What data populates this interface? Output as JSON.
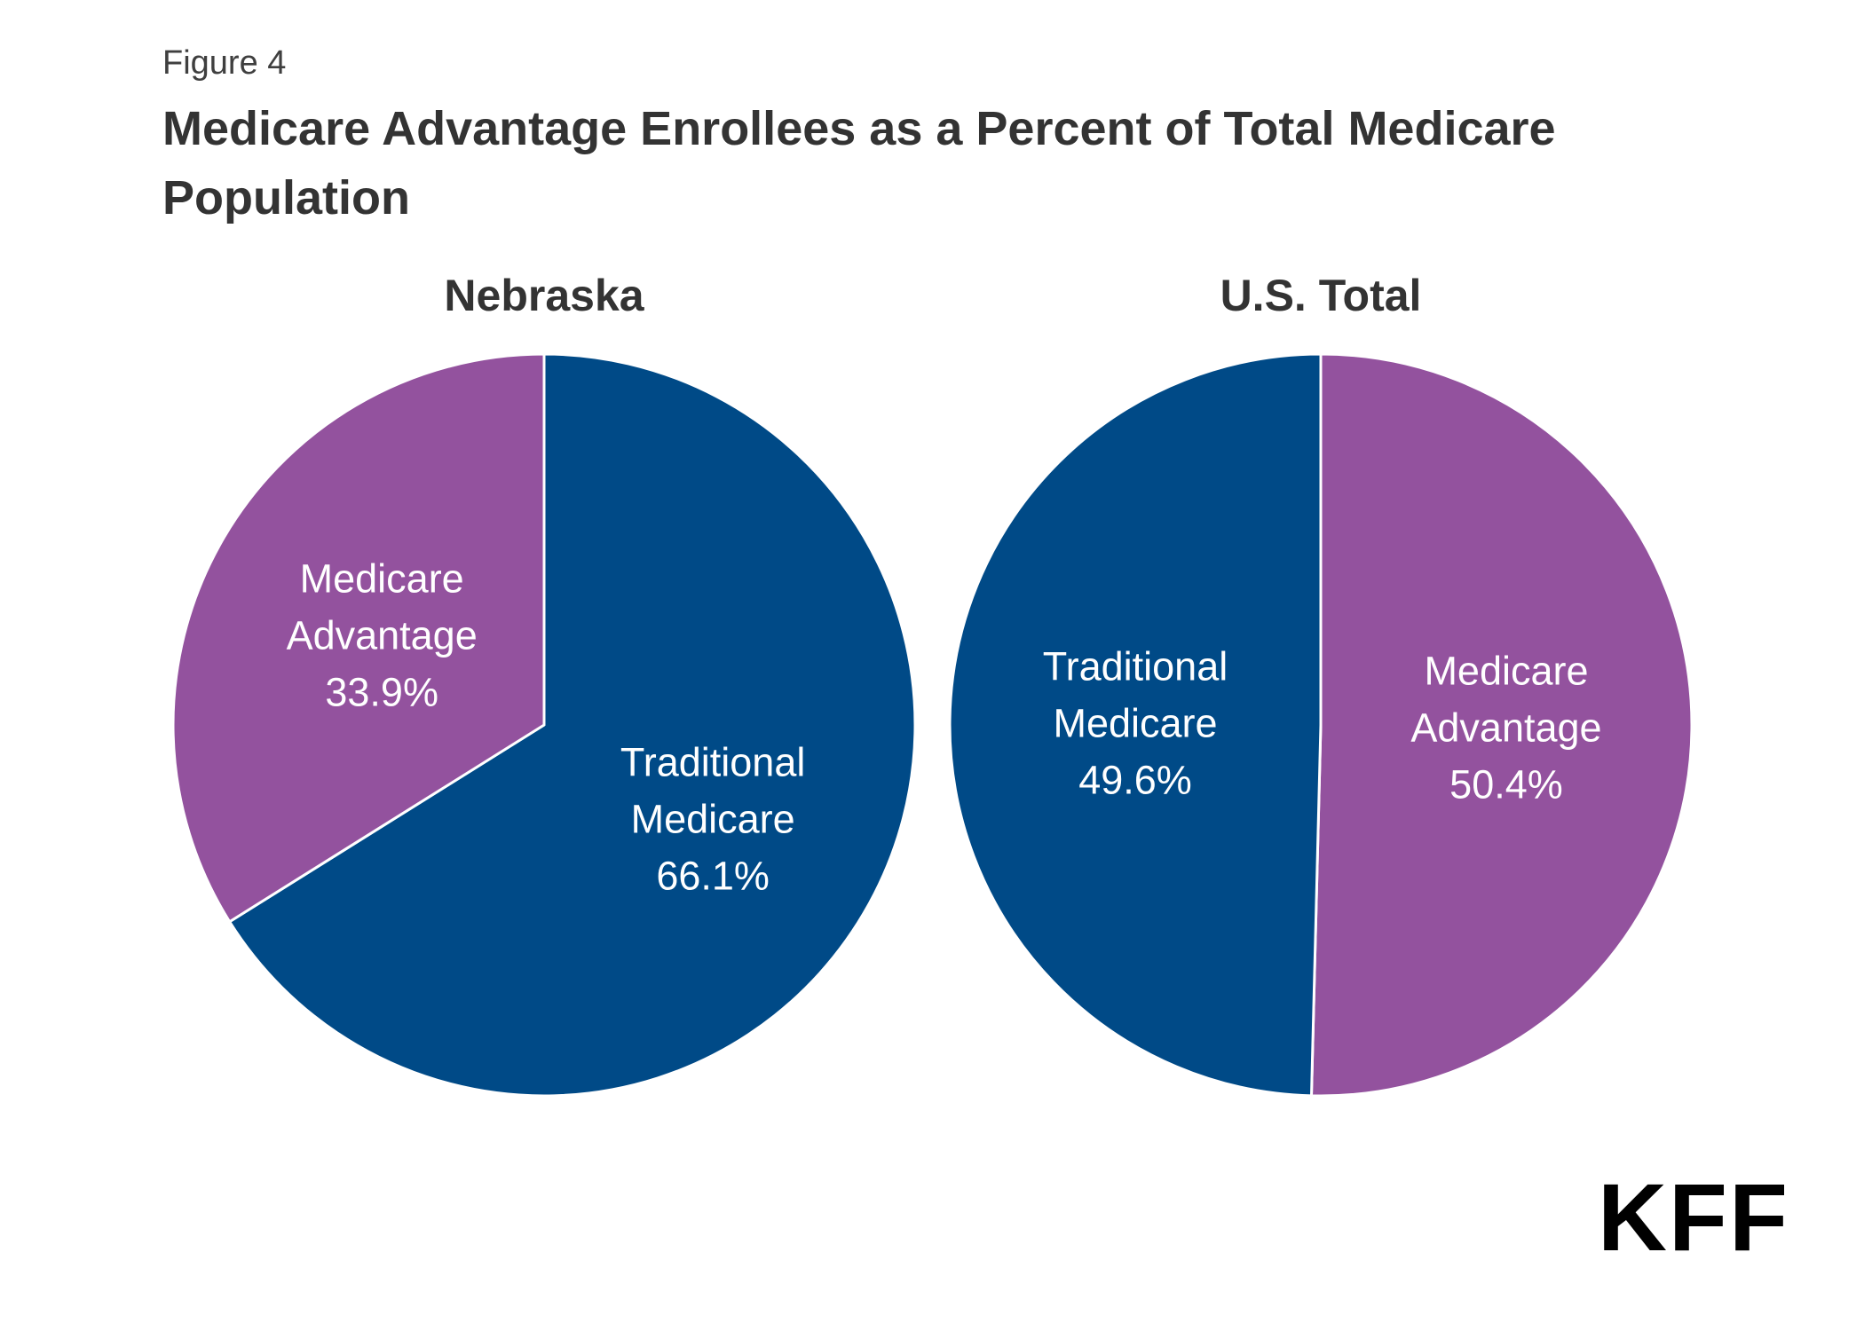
{
  "figure": {
    "label": "Figure 4",
    "title": "Medicare Advantage Enrollees as a Percent of Total Medicare Population"
  },
  "colors": {
    "traditional": "#004a87",
    "advantage": "#93529e"
  },
  "logo": "KFF",
  "chart_data": [
    {
      "type": "pie",
      "title": "Nebraska",
      "slices": [
        {
          "label": "Traditional Medicare",
          "label_lines": [
            "Traditional",
            "Medicare"
          ],
          "value": 66.1,
          "value_label": "66.1%",
          "color": "#004a87"
        },
        {
          "label": "Medicare Advantage",
          "label_lines": [
            "Medicare",
            "Advantage"
          ],
          "value": 33.9,
          "value_label": "33.9%",
          "color": "#93529e"
        }
      ]
    },
    {
      "type": "pie",
      "title": "U.S. Total",
      "slices": [
        {
          "label": "Medicare Advantage",
          "label_lines": [
            "Medicare",
            "Advantage"
          ],
          "value": 50.4,
          "value_label": "50.4%",
          "color": "#93529e"
        },
        {
          "label": "Traditional Medicare",
          "label_lines": [
            "Traditional",
            "Medicare"
          ],
          "value": 49.6,
          "value_label": "49.6%",
          "color": "#004a87"
        }
      ]
    }
  ]
}
